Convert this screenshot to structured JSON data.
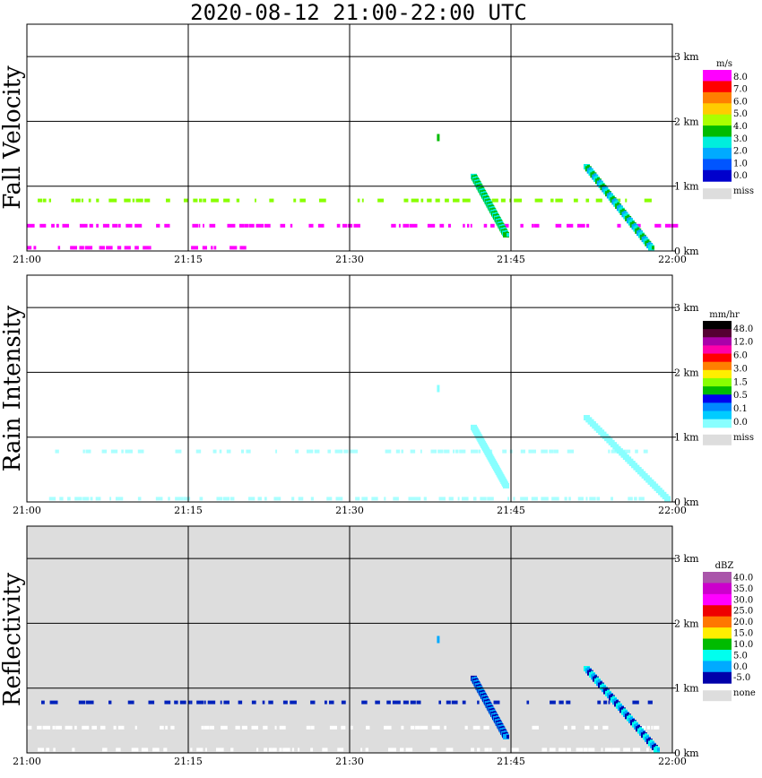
{
  "title": "2020-08-12   21:00-22:00 UTC",
  "x_ticks": [
    "21:00",
    "21:15",
    "21:30",
    "21:45",
    "22:00"
  ],
  "y_ticks": [
    "0 km",
    "1 km",
    "2 km",
    "3 km"
  ],
  "chart_data": [
    {
      "type": "heatmap",
      "ylabel": "Fall Velocity",
      "background": "#ffffff",
      "xlim": [
        "21:00",
        "22:00"
      ],
      "ylim_km": [
        0,
        3.5
      ],
      "grid": true,
      "colorbar": {
        "unit": "m/s",
        "levels": [
          "8.0",
          "7.0",
          "6.0",
          "5.0",
          "4.0",
          "3.0",
          "2.0",
          "1.0",
          "0.0"
        ],
        "colors": [
          "#ff00ff",
          "#ff0000",
          "#ff7f00",
          "#ffcc00",
          "#aaff00",
          "#00bb00",
          "#00eedd",
          "#00aaff",
          "#0055ff",
          "#0000cc"
        ],
        "missing_label": "miss",
        "missing_color": "#dddddd"
      },
      "features": [
        {
          "kind": "band",
          "y_km": 0.78,
          "x_start_min": 1,
          "x_end_min": 58,
          "color": "#88ff00",
          "sparse": true
        },
        {
          "kind": "band",
          "y_km": 0.39,
          "x_start_min": 0,
          "x_end_min": 60,
          "color": "#ff00ff",
          "sparse": true
        },
        {
          "kind": "band",
          "y_km": 0.05,
          "x_start_min": 0,
          "x_end_min": 20,
          "color": "#ff00ff",
          "sparse": true
        },
        {
          "kind": "streak",
          "x_start_min": 41.5,
          "y_start_km": 1.15,
          "x_end_min": 44.5,
          "y_end_km": 0.25,
          "colors": [
            "#00eedd",
            "#00bb00"
          ]
        },
        {
          "kind": "streak",
          "x_start_min": 52.0,
          "y_start_km": 1.3,
          "x_end_min": 58.0,
          "y_end_km": 0.05,
          "colors": [
            "#00eedd",
            "#00bb00",
            "#00aaff"
          ]
        },
        {
          "kind": "dot",
          "x_min": 38.2,
          "y_km": 1.75,
          "color": "#00bb00"
        }
      ]
    },
    {
      "type": "heatmap",
      "ylabel": "Rain Intensity",
      "background": "#ffffff",
      "xlim": [
        "21:00",
        "22:00"
      ],
      "ylim_km": [
        0,
        3.5
      ],
      "grid": true,
      "colorbar": {
        "unit": "mm/hr",
        "levels": [
          "48.0",
          "12.0",
          "6.0",
          "3.0",
          "1.5",
          "0.5",
          "0.1",
          "0.0"
        ],
        "colors": [
          "#000000",
          "#550033",
          "#aa00aa",
          "#ff00aa",
          "#ff0000",
          "#ff7f00",
          "#ffee00",
          "#88ff00",
          "#00bb00",
          "#0000ee",
          "#0088ff",
          "#00ccff",
          "#88ffff"
        ],
        "missing_label": "miss",
        "missing_color": "#dddddd"
      },
      "features": [
        {
          "kind": "band",
          "y_km": 0.78,
          "x_start_min": 1,
          "x_end_min": 58,
          "color": "#aaffff",
          "sparse": true
        },
        {
          "kind": "band",
          "y_km": 0.05,
          "x_start_min": 0,
          "x_end_min": 60,
          "color": "#aaffff",
          "sparse": true
        },
        {
          "kind": "streak",
          "x_start_min": 41.5,
          "y_start_km": 1.15,
          "x_end_min": 44.5,
          "y_end_km": 0.25,
          "colors": [
            "#88ffff"
          ]
        },
        {
          "kind": "streak",
          "x_start_min": 52.0,
          "y_start_km": 1.3,
          "x_end_min": 59.5,
          "y_end_km": 0.05,
          "colors": [
            "#88ffff"
          ]
        },
        {
          "kind": "dot",
          "x_min": 38.2,
          "y_km": 1.75,
          "color": "#88ffff"
        }
      ]
    },
    {
      "type": "heatmap",
      "ylabel": "Reflectivity",
      "background": "#dddddd",
      "xlim": [
        "21:00",
        "22:00"
      ],
      "ylim_km": [
        0,
        3.5
      ],
      "grid": true,
      "colorbar": {
        "unit": "dBZ",
        "levels": [
          "40.0",
          "35.0",
          "30.0",
          "25.0",
          "20.0",
          "15.0",
          "10.0",
          "5.0",
          "0.0",
          "-5.0"
        ],
        "colors": [
          "#aa55aa",
          "#cc00cc",
          "#ff00ff",
          "#ee0000",
          "#ff7700",
          "#ffee00",
          "#00bb00",
          "#00ffee",
          "#00aaff",
          "#0000aa"
        ],
        "missing_label": "none",
        "missing_color": "#dddddd"
      },
      "features": [
        {
          "kind": "band",
          "y_km": 0.78,
          "x_start_min": 1,
          "x_end_min": 58,
          "color": "#0022bb",
          "sparse": true
        },
        {
          "kind": "band",
          "y_km": 0.39,
          "x_start_min": 0,
          "x_end_min": 60,
          "color": "#ffffff",
          "sparse": true
        },
        {
          "kind": "band",
          "y_km": 0.05,
          "x_start_min": 0,
          "x_end_min": 60,
          "color": "#ffffff",
          "sparse": true
        },
        {
          "kind": "streak",
          "x_start_min": 41.5,
          "y_start_km": 1.15,
          "x_end_min": 44.5,
          "y_end_km": 0.25,
          "colors": [
            "#0000aa",
            "#00aaff"
          ]
        },
        {
          "kind": "streak",
          "x_start_min": 52.0,
          "y_start_km": 1.3,
          "x_end_min": 58.5,
          "y_end_km": 0.05,
          "colors": [
            "#00ffee",
            "#00aaff",
            "#0000aa"
          ]
        },
        {
          "kind": "dot",
          "x_min": 38.2,
          "y_km": 1.75,
          "color": "#00aaff"
        }
      ]
    }
  ]
}
